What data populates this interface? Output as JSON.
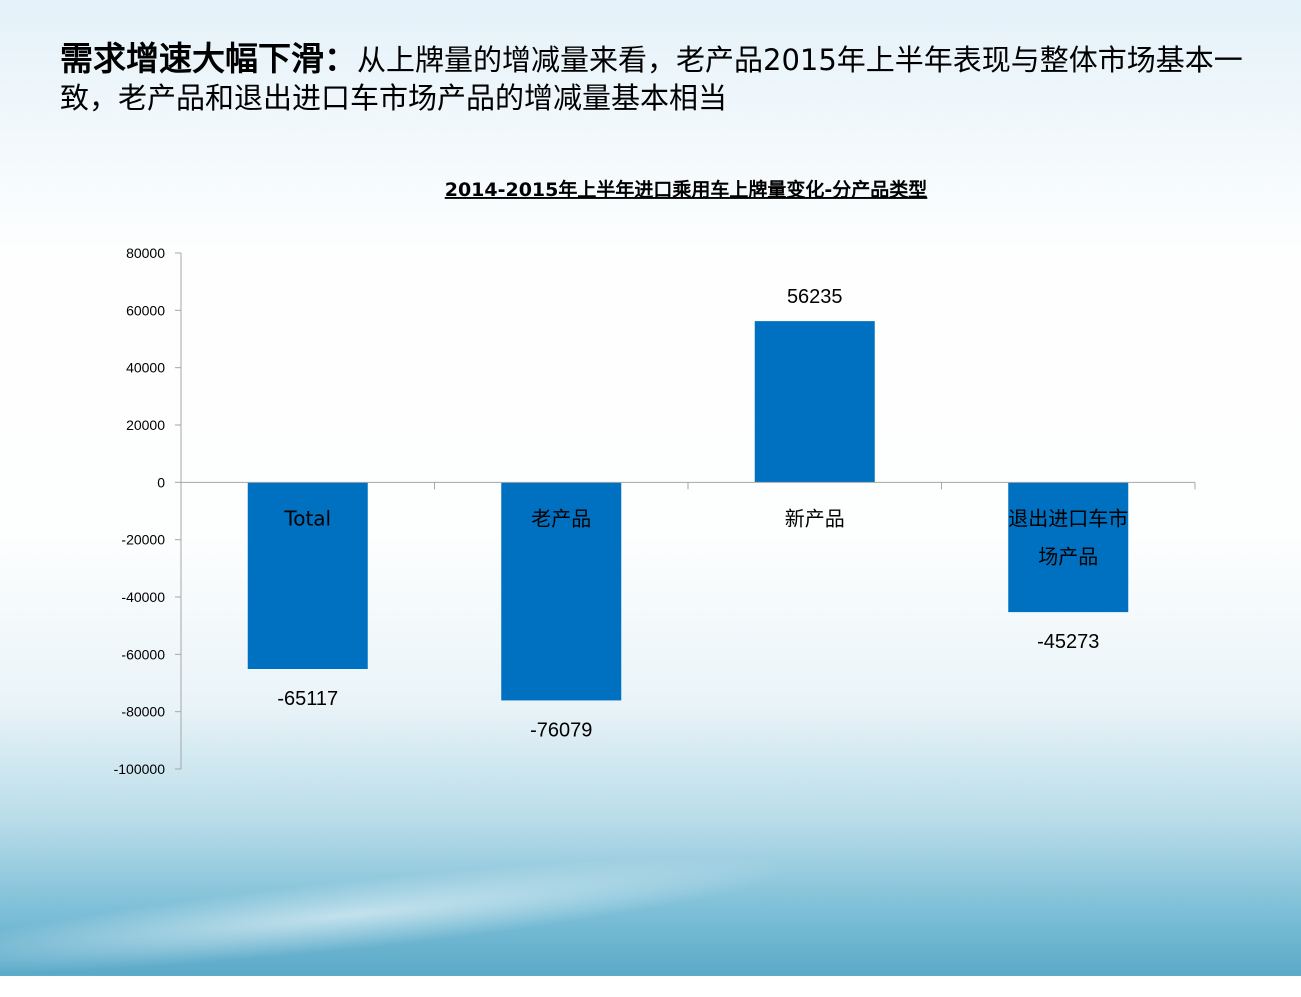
{
  "heading": {
    "highlight": "需求增速大幅下滑：",
    "text": "从上牌量的增减量来看，老产品2015年上半年表现与整体市场基本一致，老产品和退出进口车市场产品的增减量基本相当"
  },
  "colors": {
    "bar": "#0070c0",
    "axis": "#a6a6a6"
  },
  "chart_data": {
    "type": "bar",
    "title": "2014-2015年上半年进口乘用车上牌量变化-分产品类型",
    "categories": [
      "Total",
      "老产品",
      "新产品",
      "退出进口车市场产品"
    ],
    "category_lines": [
      [
        "Total"
      ],
      [
        "老产品"
      ],
      [
        "新产品"
      ],
      [
        "退出进口车市",
        "场产品"
      ]
    ],
    "values": [
      -65117,
      -76079,
      56235,
      -45273
    ],
    "data_labels": [
      "-65117",
      "-76079",
      "56235",
      "-45273"
    ],
    "ylim": [
      -100000,
      80000
    ],
    "yticks": [
      80000,
      60000,
      40000,
      20000,
      0,
      -20000,
      -40000,
      -60000,
      -80000,
      -100000
    ],
    "grid": false,
    "legend": "none"
  }
}
